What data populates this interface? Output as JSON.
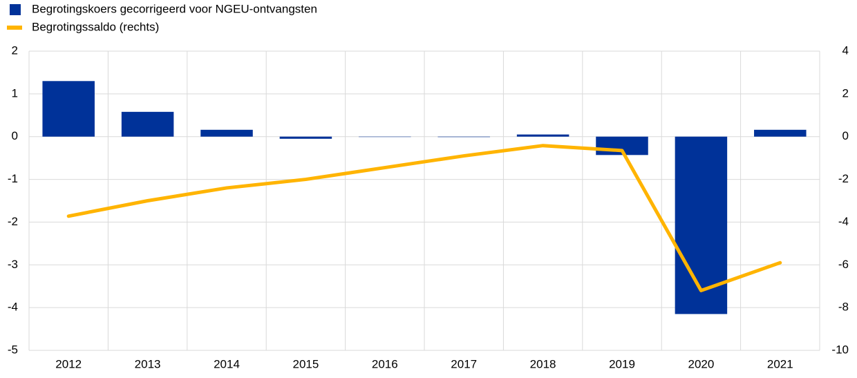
{
  "chart_data": {
    "type": "bar",
    "categories": [
      "2012",
      "2013",
      "2014",
      "2015",
      "2016",
      "2017",
      "2018",
      "2019",
      "2020",
      "2021"
    ],
    "series": [
      {
        "name": "Begrotingskoers gecorrigeerd voor NGEU-ontvangsten",
        "type": "bar",
        "color": "#003299",
        "values": [
          1.3,
          0.58,
          0.16,
          -0.05,
          0.0,
          -0.01,
          0.05,
          -0.43,
          -4.15,
          0.16
        ]
      },
      {
        "name": "Begrotingssaldo (rechts)",
        "type": "line",
        "axis": "y2",
        "color": "#FFB400",
        "values": [
          -3.72,
          -3.0,
          -2.4,
          -2.0,
          -1.45,
          -0.9,
          -0.42,
          -0.65,
          -7.2,
          -5.9
        ]
      }
    ],
    "ylim": [
      -5,
      2
    ],
    "yticks": [
      2,
      1,
      0,
      -1,
      -2,
      -3,
      -4,
      -5
    ],
    "y2lim": [
      -10,
      4
    ],
    "y2ticks": [
      4,
      2,
      0,
      -2,
      -4,
      -6,
      -8,
      -10
    ],
    "grid": true
  }
}
